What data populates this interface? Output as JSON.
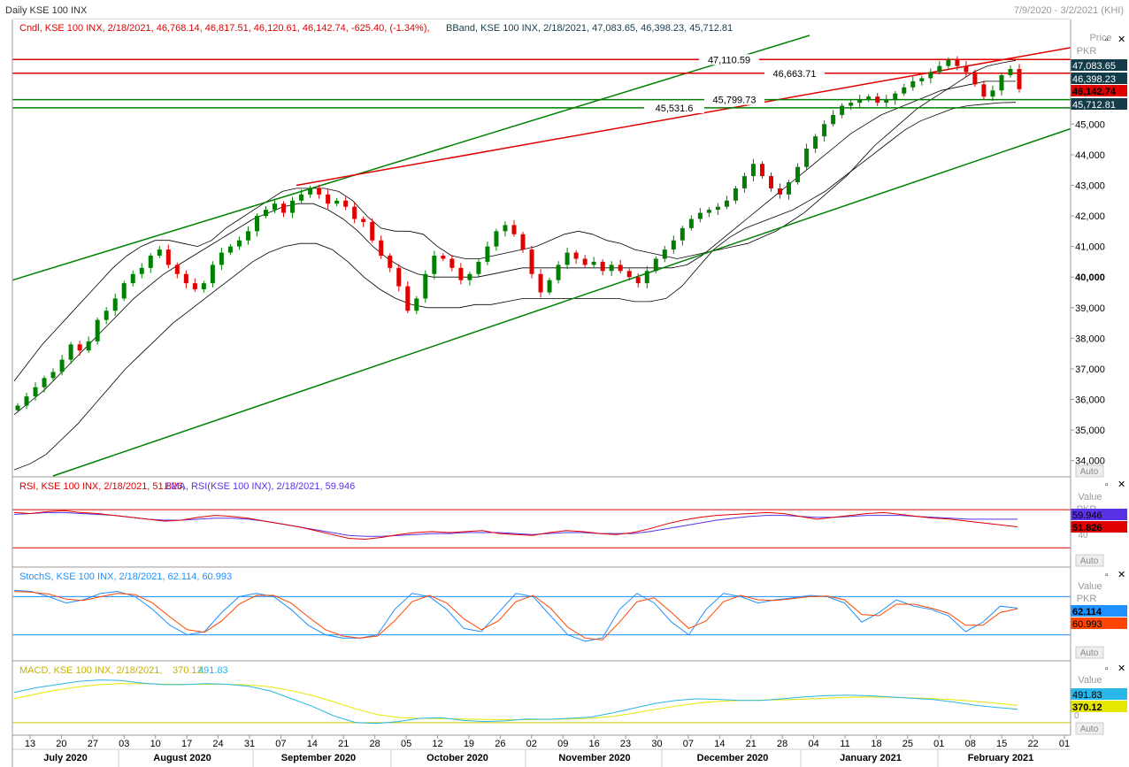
{
  "header": {
    "title": "Daily KSE 100 INX",
    "date_range": "7/9/2020 - 3/2/2021 (KHI)",
    "candle_info": "Cndl, KSE 100 INX, 2/18/2021, 46,768.14, 46,817.51, 46,120.61, 46,142.74, -625.40, (-1.34%),",
    "bband_info": "BBand, KSE 100 INX, 2/18/2021, 47,083.65, 46,398.23, 45,712.81"
  },
  "price_panel": {
    "axis_title": "Price",
    "axis_unit": "PKR",
    "auto_label": "Auto",
    "ticks": [
      "45,000",
      "44,000",
      "43,000",
      "42,000",
      "41,000",
      "40,000",
      "39,000",
      "38,000",
      "37,000",
      "36,000",
      "35,000",
      "34,000"
    ],
    "tick_values": [
      45000,
      44000,
      43000,
      42000,
      41000,
      40000,
      39000,
      38000,
      37000,
      36000,
      35000,
      34000
    ],
    "ylim": [
      33500,
      47900
    ],
    "hlines": [
      {
        "value": 47110.59,
        "label": "47,110.59",
        "color": "#e00000"
      },
      {
        "value": 46663.71,
        "label": "46,663.71",
        "color": "#e00000"
      },
      {
        "value": 45799.73,
        "label": "45,799.73",
        "color": "#008000"
      },
      {
        "value": 45531.6,
        "label": "45,531.6",
        "color": "#008000"
      }
    ],
    "tags": [
      {
        "text": "47,083.65",
        "value": 47083.65,
        "bg": "#123c4a",
        "fg": "#ffffff"
      },
      {
        "text": "46,398.23",
        "value": 46398.23,
        "bg": "#123c4a",
        "fg": "#ffffff"
      },
      {
        "text": "46,142.74",
        "value": 46142.74,
        "bg": "#e00000",
        "fg": "#000000"
      },
      {
        "text": "45,712.81",
        "value": 45712.81,
        "bg": "#123c4a",
        "fg": "#ffffff"
      }
    ]
  },
  "rsi_panel": {
    "legend_rsi": "RSI, KSE 100 INX, 2/18/2021, 51.826,",
    "legend_ema": "EMA, RSI(KSE 100 INX), 2/18/2021, 59.946",
    "axis_title": "Value",
    "axis_unit": "PKR",
    "auto_label": "Auto",
    "tick_40": "40",
    "tags": [
      {
        "text": "59.946",
        "bg": "#5a32e6",
        "fg": "#000000"
      },
      {
        "text": "51.826",
        "bg": "#e00000",
        "fg": "#000000"
      }
    ]
  },
  "stoch_panel": {
    "legend": "StochS, KSE 100 INX, 2/18/2021, 62.114, 60.993",
    "axis_title": "Value",
    "axis_unit": "PKR",
    "auto_label": "Auto",
    "tags": [
      {
        "text": "62.114",
        "bg": "#1e90ff",
        "fg": "#000000"
      },
      {
        "text": "60.993",
        "bg": "#ff4500",
        "fg": "#000000"
      }
    ]
  },
  "macd_panel": {
    "legend_name": "MACD, KSE 100 INX, 2/18/2021,",
    "legend_v1": "370.12,",
    "legend_v2": "491.83",
    "axis_title": "Value",
    "auto_label": "Auto",
    "zero_label": "0",
    "tags": [
      {
        "text": "491.83",
        "bg": "#29b6e8",
        "fg": "#000000"
      },
      {
        "text": "370.12",
        "bg": "#e6e600",
        "fg": "#000000"
      }
    ]
  },
  "x_axis": {
    "day_ticks": [
      "13",
      "20",
      "27",
      "03",
      "10",
      "17",
      "24",
      "31",
      "07",
      "14",
      "21",
      "28",
      "05",
      "12",
      "19",
      "26",
      "02",
      "09",
      "16",
      "23",
      "30",
      "07",
      "14",
      "21",
      "28",
      "04",
      "11",
      "18",
      "25",
      "01",
      "08",
      "15",
      "22",
      "01"
    ],
    "months": [
      "July 2020",
      "August 2020",
      "September 2020",
      "October 2020",
      "November 2020",
      "December 2020",
      "January 2021",
      "February 2021"
    ]
  },
  "colors": {
    "up_candle": "#008000",
    "down_candle": "#e00000",
    "bband": "#000000",
    "channel": "#008000",
    "resistance": "#e00000",
    "rsi": "#e00000",
    "rsi_ema": "#5a32e6",
    "stoch_k": "#1e90ff",
    "stoch_d": "#ff4500",
    "macd": "#29b6e8",
    "macd_signal": "#e6e600"
  },
  "chart_data": [
    {
      "type": "candlestick",
      "title": "Daily KSE 100 INX",
      "ylabel": "Price PKR",
      "ylim": [
        33500,
        47900
      ],
      "series": [
        {
          "name": "Cndl",
          "close": [
            35800,
            36100,
            36400,
            36700,
            36900,
            37300,
            37800,
            37600,
            37900,
            38600,
            38900,
            39300,
            39800,
            40100,
            40300,
            40700,
            40900,
            40400,
            40100,
            39800,
            39600,
            39800,
            40400,
            40800,
            41000,
            41200,
            41500,
            42000,
            42200,
            42400,
            42100,
            42500,
            42700,
            42900,
            42700,
            42400,
            42500,
            42300,
            41900,
            41800,
            41200,
            40700,
            40300,
            39700,
            38900,
            39300,
            40100,
            40700,
            40600,
            40300,
            39900,
            40100,
            40500,
            41000,
            41500,
            41700,
            41400,
            40900,
            40100,
            39500,
            39900,
            40400,
            40800,
            40600,
            40400,
            40500,
            40200,
            40400,
            40200,
            40000,
            39800,
            40200,
            40600,
            40900,
            41200,
            41600,
            41900,
            42100,
            42200,
            42300,
            42500,
            42900,
            43300,
            43700,
            43300,
            42900,
            42700,
            43100,
            43600,
            44200,
            44600,
            45000,
            45300,
            45600,
            45700,
            45800,
            45900,
            45700,
            45800,
            46000,
            46200,
            46400,
            46500,
            46700,
            46900,
            47100,
            46900,
            46700,
            46300,
            45900,
            46100,
            46600,
            46800,
            46143
          ]
        },
        {
          "name": "BBand upper",
          "values": [
            36600,
            37200,
            37800,
            38300,
            38800,
            39300,
            39800,
            40300,
            40700,
            41000,
            41200,
            41200,
            41100,
            41000,
            41200,
            41600,
            41900,
            42200,
            42500,
            42800,
            42900,
            42900,
            42900,
            42800,
            42500,
            42000,
            41600,
            41500,
            41500,
            41400,
            41000,
            40700,
            40600,
            40600,
            40700,
            40800,
            40900,
            41000,
            41200,
            41400,
            41500,
            41400,
            41200,
            41100,
            40900,
            40800,
            40700,
            40600,
            40700,
            40800,
            40900,
            41000,
            41100,
            41300,
            41500,
            41800,
            42100,
            42500,
            42900,
            43300,
            43800,
            44300,
            44700,
            45100,
            45500,
            45800,
            46100,
            46400,
            46700,
            46900,
            47000,
            47083
          ]
        },
        {
          "name": "BBand middle",
          "values": [
            35500,
            35900,
            36300,
            36800,
            37300,
            37800,
            38300,
            38800,
            39300,
            39700,
            40100,
            40400,
            40700,
            41000,
            41300,
            41600,
            41900,
            42100,
            42300,
            42400,
            42400,
            42200,
            41900,
            41500,
            41000,
            40600,
            40300,
            40100,
            40000,
            40000,
            40000,
            40000,
            40100,
            40200,
            40300,
            40300,
            40300,
            40300,
            40300,
            40300,
            40300,
            40300,
            40300,
            40300,
            40300,
            40400,
            40700,
            41100,
            41500,
            41900,
            42300,
            42700,
            43100,
            43500,
            43900,
            44300,
            44700,
            45000,
            45300,
            45500,
            45700,
            45900,
            46100,
            46200,
            46300,
            46400,
            46400,
            46398
          ]
        },
        {
          "name": "BBand lower",
          "values": [
            33700,
            33900,
            34200,
            34700,
            35200,
            35800,
            36400,
            37000,
            37500,
            38000,
            38500,
            38900,
            39300,
            39700,
            40100,
            40500,
            40800,
            41000,
            41100,
            41100,
            40900,
            40500,
            40000,
            39600,
            39300,
            39100,
            39000,
            39000,
            39000,
            39100,
            39100,
            39200,
            39300,
            39300,
            39300,
            39300,
            39300,
            39300,
            39300,
            39200,
            39200,
            39300,
            39700,
            40300,
            40900,
            41300,
            41600,
            41800,
            42000,
            42200,
            42500,
            42800,
            43200,
            43600,
            44000,
            44400,
            44800,
            45100,
            45300,
            45500,
            45600,
            45650,
            45700,
            45712
          ]
        }
      ]
    },
    {
      "type": "line",
      "title": "RSI",
      "hlines": [
        70,
        30
      ],
      "series": [
        {
          "name": "RSI",
          "values": [
            67,
            66,
            68,
            69,
            67,
            66,
            64,
            62,
            60,
            58,
            59,
            62,
            64,
            63,
            61,
            58,
            55,
            52,
            48,
            44,
            40,
            39,
            41,
            44,
            46,
            47,
            46,
            47,
            48,
            45,
            44,
            43,
            46,
            48,
            47,
            45,
            44,
            46,
            50,
            55,
            59,
            62,
            64,
            65,
            66,
            67,
            66,
            63,
            60,
            62,
            64,
            66,
            67,
            65,
            63,
            61,
            60,
            58,
            56,
            54,
            52
          ]
        },
        {
          "name": "EMA",
          "values": [
            65,
            66,
            67,
            67,
            66,
            65,
            64,
            62,
            60,
            59,
            59,
            60,
            61,
            61,
            60,
            58,
            55,
            52,
            49,
            46,
            43,
            42,
            42,
            43,
            44,
            45,
            45,
            46,
            46,
            46,
            45,
            44,
            45,
            46,
            46,
            45,
            45,
            45,
            47,
            50,
            53,
            56,
            59,
            61,
            63,
            64,
            64,
            63,
            62,
            62,
            63,
            64,
            64,
            64,
            63,
            62,
            61,
            60,
            60,
            60,
            60
          ]
        }
      ]
    },
    {
      "type": "line",
      "title": "StochS",
      "series": [
        {
          "name": "StochS %K",
          "values": [
            90,
            88,
            80,
            70,
            75,
            85,
            88,
            80,
            60,
            35,
            20,
            25,
            55,
            80,
            85,
            80,
            60,
            35,
            20,
            15,
            15,
            20,
            60,
            85,
            80,
            60,
            30,
            25,
            55,
            85,
            80,
            50,
            20,
            10,
            15,
            60,
            85,
            70,
            40,
            20,
            60,
            85,
            80,
            70,
            75,
            78,
            82,
            80,
            70,
            40,
            55,
            75,
            65,
            60,
            50,
            25,
            40,
            65,
            62
          ]
        },
        {
          "name": "StochS %D",
          "values": [
            88,
            87,
            84,
            76,
            74,
            80,
            85,
            83,
            70,
            48,
            28,
            24,
            42,
            68,
            82,
            82,
            70,
            48,
            28,
            18,
            15,
            18,
            42,
            72,
            82,
            70,
            45,
            28,
            42,
            72,
            82,
            62,
            32,
            15,
            12,
            40,
            72,
            78,
            55,
            30,
            42,
            72,
            82,
            75,
            74,
            77,
            80,
            81,
            75,
            52,
            50,
            68,
            68,
            62,
            54,
            35,
            35,
            55,
            61
          ]
        }
      ]
    },
    {
      "type": "line",
      "title": "MACD",
      "series": [
        {
          "name": "MACD",
          "values": [
            900,
            1050,
            1150,
            1250,
            1300,
            1280,
            1200,
            1150,
            1150,
            1180,
            1160,
            1100,
            950,
            700,
            450,
            150,
            -50,
            -80,
            -20,
            80,
            100,
            20,
            -20,
            0,
            60,
            50,
            80,
            120,
            250,
            400,
            550,
            650,
            700,
            680,
            650,
            650,
            700,
            760,
            800,
            820,
            800,
            760,
            720,
            680,
            600,
            500,
            430,
            370
          ]
        },
        {
          "name": "Signal",
          "values": [
            700,
            850,
            980,
            1080,
            1150,
            1180,
            1180,
            1170,
            1160,
            1160,
            1160,
            1140,
            1080,
            960,
            800,
            600,
            380,
            200,
            110,
            80,
            70,
            60,
            50,
            40,
            40,
            50,
            60,
            80,
            140,
            240,
            360,
            470,
            560,
            620,
            650,
            660,
            670,
            690,
            720,
            750,
            760,
            750,
            730,
            710,
            670,
            620,
            560,
            490
          ]
        }
      ]
    }
  ]
}
